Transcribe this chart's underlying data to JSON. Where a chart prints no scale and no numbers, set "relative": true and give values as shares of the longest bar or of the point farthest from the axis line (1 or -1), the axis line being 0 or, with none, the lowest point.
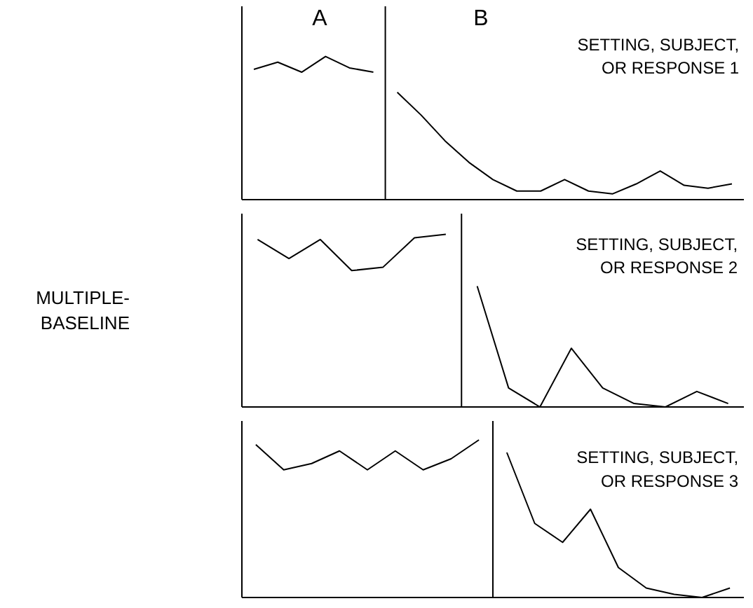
{
  "chart_data": [
    {
      "type": "line",
      "relative": true,
      "line_style": "solid",
      "categories": [
        null,
        null,
        null,
        null,
        null,
        null,
        null,
        null,
        null,
        null,
        null,
        null,
        null,
        null,
        null,
        null,
        null,
        null,
        null,
        null,
        null
      ],
      "series": [
        {
          "color": "#000000",
          "values": [
            0.91,
            0.96,
            0.89,
            1,
            0.92,
            0.89,
            null,
            null,
            null,
            null,
            null,
            null,
            null,
            null,
            null,
            null,
            null,
            null,
            null,
            null,
            null
          ]
        },
        {
          "color": "#000000",
          "values": [
            null,
            null,
            null,
            null,
            null,
            null,
            0.75,
            0.59,
            0.41,
            0.26,
            0.14,
            0.06,
            0.06,
            0.14,
            0.06,
            0.04,
            0.11,
            0.2,
            0.1,
            0.08,
            0.11
          ]
        }
      ],
      "annotations": [
        "A",
        "B",
        "SETTING, SUBJECT,\nOR RESPONSE 1"
      ]
    },
    {
      "type": "line",
      "relative": true,
      "line_style": "solid",
      "categories": [
        null,
        null,
        null,
        null,
        null,
        null,
        null,
        null,
        null,
        null,
        null,
        null,
        null,
        null,
        null,
        null
      ],
      "series": [
        {
          "color": "#000000",
          "values": [
            0.97,
            0.86,
            0.97,
            0.79,
            0.81,
            0.98,
            1,
            null,
            null,
            null,
            null,
            null,
            null,
            null,
            null,
            null
          ]
        },
        {
          "color": "#000000",
          "values": [
            null,
            null,
            null,
            null,
            null,
            null,
            null,
            0.7,
            0.11,
            0,
            0.34,
            0.11,
            0.02,
            0,
            0.09,
            0.02
          ]
        }
      ],
      "ylabel": "MULTIPLE-\nBASELINE",
      "annotations": [
        "SETTING, SUBJECT,\nOR RESPONSE 2"
      ]
    },
    {
      "type": "line",
      "relative": true,
      "line_style": "solid",
      "categories": [
        null,
        null,
        null,
        null,
        null,
        null,
        null,
        null,
        null,
        null,
        null,
        null,
        null,
        null,
        null,
        null,
        null,
        null
      ],
      "series": [
        {
          "color": "#000000",
          "values": [
            0.97,
            0.81,
            0.85,
            0.93,
            0.81,
            0.93,
            0.81,
            0.88,
            1,
            null,
            null,
            null,
            null,
            null,
            null,
            null,
            null,
            null
          ]
        },
        {
          "color": "#000000",
          "values": [
            null,
            null,
            null,
            null,
            null,
            null,
            null,
            null,
            null,
            0.92,
            0.47,
            0.35,
            0.56,
            0.19,
            0.06,
            0.02,
            0,
            0.06
          ]
        }
      ],
      "annotations": [
        "SETTING, SUBJECT,\nOR RESPONSE 3"
      ]
    }
  ]
}
